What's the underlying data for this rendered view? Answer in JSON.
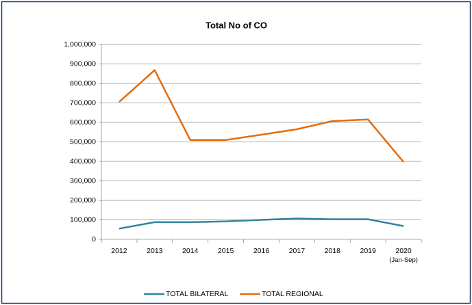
{
  "chart_data": {
    "type": "line",
    "title": "Total No of CO",
    "categories": [
      "2012",
      "2013",
      "2014",
      "2015",
      "2016",
      "2017",
      "2018",
      "2019",
      "2020\n(Jan-Sep)"
    ],
    "series": [
      {
        "name": "TOTAL BILATERAL",
        "color": "#31859c",
        "values": [
          55000,
          88000,
          88000,
          92000,
          100000,
          107000,
          103000,
          103000,
          68000
        ]
      },
      {
        "name": "TOTAL REGIONAL",
        "color": "#e46c0a",
        "values": [
          705000,
          868000,
          510000,
          510000,
          537000,
          565000,
          607000,
          615000,
          397000
        ]
      }
    ],
    "ylim": [
      0,
      1000000
    ],
    "yticks": [
      0,
      {
        "value": 100000,
        "label": "100,000"
      },
      {
        "value": 200000,
        "label": "200,000"
      },
      {
        "value": 300000,
        "label": "300,000"
      },
      {
        "value": 400000,
        "label": "400,000"
      },
      {
        "value": 500000,
        "label": "500,000"
      },
      {
        "value": 600000,
        "label": "600,000"
      },
      {
        "value": 700000,
        "label": "700,000"
      },
      {
        "value": 800000,
        "label": "800,000"
      },
      {
        "value": 900000,
        "label": "900,000"
      },
      {
        "value": 1000000,
        "label": "1,000,000"
      }
    ],
    "grid": true,
    "legend": "bottom"
  }
}
